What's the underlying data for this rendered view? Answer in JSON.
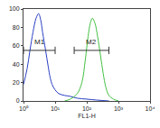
{
  "chart_data": {
    "type": "line",
    "x_label": "FL1-H",
    "log": "x",
    "grid": false,
    "xlim": [
      1,
      10000
    ],
    "xticks": [
      {
        "value": 1,
        "label": "10⁰"
      },
      {
        "value": 10,
        "label": "10¹"
      },
      {
        "value": 100,
        "label": "10²"
      },
      {
        "value": 1000,
        "label": "10³"
      },
      {
        "value": 10000,
        "label": "10⁴"
      }
    ],
    "ylim": [
      0,
      100
    ],
    "yticks": [
      0,
      20,
      40,
      60,
      80,
      100
    ],
    "series": [
      {
        "color": "#2a3fc4",
        "x": [
          1,
          1.3,
          1.6,
          2,
          2.5,
          3,
          3.5,
          4,
          5,
          6,
          7,
          8,
          10,
          13,
          20,
          30,
          50,
          100,
          200,
          500
        ],
        "values": [
          18,
          35,
          55,
          75,
          90,
          95,
          88,
          75,
          55,
          38,
          25,
          18,
          12,
          8,
          6,
          5,
          3,
          2,
          1,
          0
        ]
      },
      {
        "color": "#44c043",
        "x": [
          20,
          30,
          50,
          70,
          90,
          110,
          130,
          150,
          180,
          220,
          270,
          330,
          400,
          500,
          700,
          1000
        ],
        "values": [
          0,
          2,
          8,
          20,
          45,
          70,
          85,
          90,
          85,
          70,
          50,
          30,
          15,
          6,
          2,
          0
        ]
      }
    ],
    "gates": [
      {
        "label": "M1",
        "range": [
          1,
          10
        ],
        "y": 55
      },
      {
        "label": "M2",
        "range": [
          40,
          500
        ],
        "y": 55
      }
    ]
  }
}
